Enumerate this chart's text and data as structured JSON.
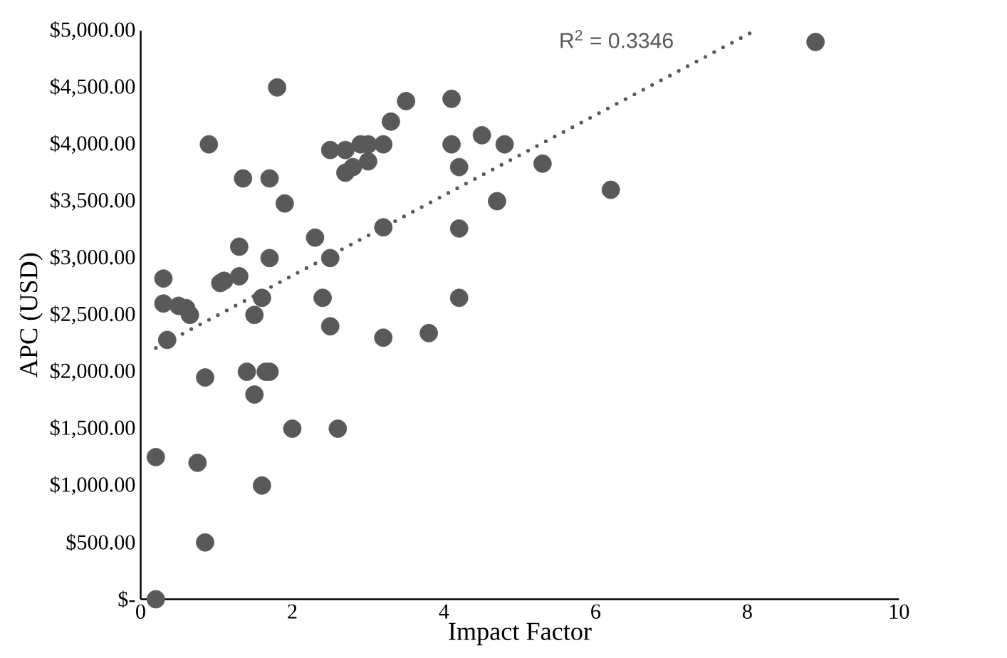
{
  "chart_data": {
    "type": "scatter",
    "xlabel": "Impact Factor",
    "ylabel": "APC (USD)",
    "xlim": [
      0,
      10
    ],
    "xticks": [
      0,
      2,
      4,
      6,
      8,
      10
    ],
    "ylim": [
      0,
      5000
    ],
    "yticks": [
      {
        "value": 0,
        "label": "$-"
      },
      {
        "value": 500,
        "label": "$500.00"
      },
      {
        "value": 1000,
        "label": "$1,000.00"
      },
      {
        "value": 1500,
        "label": "$1,500.00"
      },
      {
        "value": 2000,
        "label": "$2,000.00"
      },
      {
        "value": 2500,
        "label": "$2,500.00"
      },
      {
        "value": 3000,
        "label": "$3,000.00"
      },
      {
        "value": 3500,
        "label": "$3,500.00"
      },
      {
        "value": 4000,
        "label": "$4,000.00"
      },
      {
        "value": 4500,
        "label": "$4,500.00"
      },
      {
        "value": 5000,
        "label": "$5,000.00"
      }
    ],
    "grid": false,
    "annotations": [
      "R$^{2}$ = 0.3346"
    ],
    "series": [
      {
        "color": "#595959",
        "marker": "circle",
        "x": [
          0.2,
          0.2,
          0.3,
          0.3,
          0.35,
          0.5,
          0.6,
          0.65,
          0.75,
          0.85,
          0.85,
          0.9,
          1.05,
          1.1,
          1.3,
          1.3,
          1.35,
          1.4,
          1.5,
          1.5,
          1.6,
          1.6,
          1.65,
          1.7,
          1.7,
          1.7,
          1.8,
          1.9,
          2.0,
          2.3,
          2.4,
          2.5,
          2.5,
          2.5,
          2.6,
          2.7,
          2.7,
          2.8,
          2.9,
          3.0,
          3.0,
          3.2,
          3.2,
          3.2,
          3.3,
          3.5,
          3.8,
          4.1,
          4.1,
          4.2,
          4.2,
          4.2,
          4.5,
          4.7,
          4.8,
          5.3,
          6.2,
          8.9
        ],
        "values": [
          0,
          1250,
          2600,
          2820,
          2280,
          2580,
          2560,
          2500,
          1200,
          500,
          1950,
          4000,
          2780,
          2800,
          3100,
          2840,
          3700,
          2000,
          1800,
          2500,
          1000,
          2650,
          2000,
          2000,
          3000,
          3700,
          4500,
          3480,
          1500,
          3180,
          2650,
          2400,
          3000,
          3950,
          1500,
          3950,
          3750,
          3800,
          4000,
          4000,
          3850,
          4000,
          3270,
          2300,
          4200,
          4380,
          2340,
          4400,
          4000,
          3800,
          3260,
          2650,
          4080,
          3500,
          4000,
          3830,
          3600,
          4900
        ]
      },
      {
        "type": "line",
        "color": "#595959",
        "marker": "none",
        "line_style": "dotted",
        "x": [
          0.2,
          8.1
        ],
        "values": [
          2210,
          5000
        ]
      }
    ]
  }
}
